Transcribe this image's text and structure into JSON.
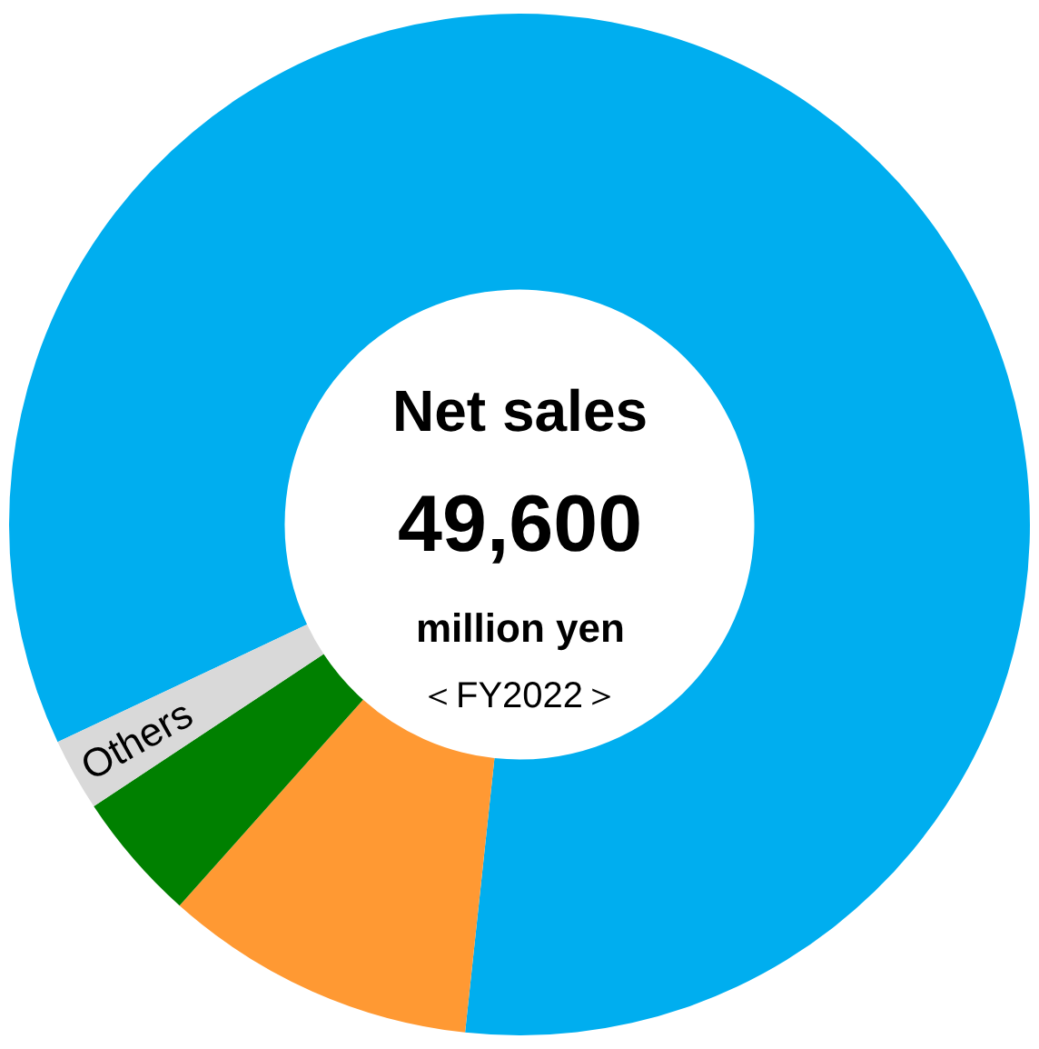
{
  "chart_data": {
    "type": "donut",
    "categories": [
      null,
      null,
      null,
      "Others"
    ],
    "values": [
      83.7,
      9.9,
      4.1,
      2.3
    ],
    "colors": [
      "#00aeef",
      "#ff9933",
      "#008000",
      "#d9d9d9"
    ],
    "annotations": [
      "Net sales",
      "49,600",
      "million yen",
      "＜FY2022＞"
    ],
    "legend": false
  }
}
